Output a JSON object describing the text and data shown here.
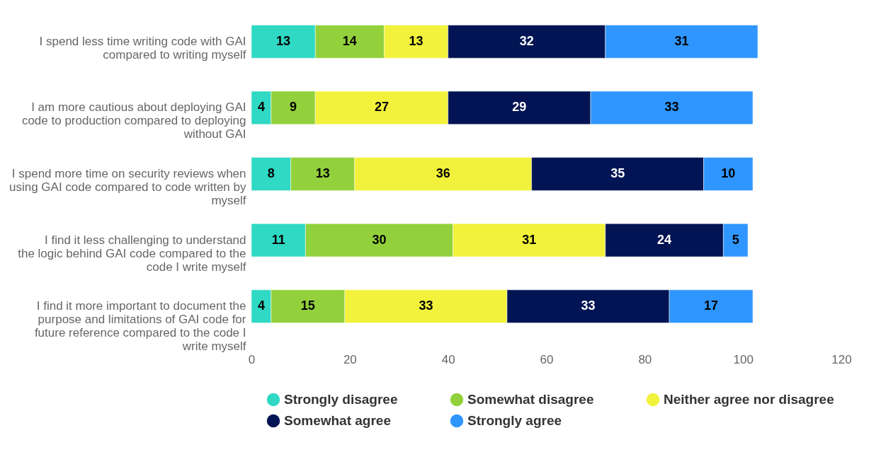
{
  "chart_data": {
    "type": "bar",
    "orientation": "horizontal",
    "stacked": true,
    "data_labels": true,
    "legend": "bottom",
    "grid": false,
    "categories": [
      "I spend less time writing code with GAI compared to writing myself",
      "I am more cautious about deploying GAI code to production compared to deploying without GAI",
      "I spend more time on security reviews when using GAI code compared to code written by myself",
      "I find it less challenging to understand the logic behind GAI code compared to the code I write myself",
      "I find it more important to document the purpose and limitations of GAI code for future reference compared to the code I write myself"
    ],
    "xlim": [
      0,
      120
    ],
    "xticks": [
      0,
      20,
      40,
      60,
      80,
      100,
      120
    ],
    "series": [
      {
        "name": "Strongly disagree",
        "color": "#2fd9c3",
        "values": [
          13,
          4,
          8,
          11,
          4
        ]
      },
      {
        "name": "Somewhat disagree",
        "color": "#92d13c",
        "values": [
          14,
          9,
          13,
          30,
          15
        ]
      },
      {
        "name": "Neither agree nor disagree",
        "color": "#f2f23c",
        "values": [
          13,
          27,
          36,
          31,
          33
        ]
      },
      {
        "name": "Somewhat agree",
        "color": "#021454",
        "values": [
          32,
          29,
          35,
          24,
          33
        ]
      },
      {
        "name": "Strongly agree",
        "color": "#2f96ff",
        "values": [
          31,
          33,
          10,
          5,
          17
        ]
      }
    ]
  }
}
